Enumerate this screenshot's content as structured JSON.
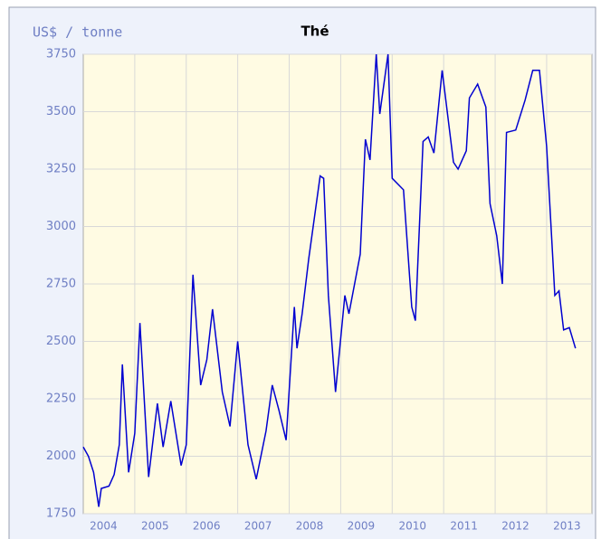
{
  "chart_data": {
    "type": "line",
    "title": "Thé",
    "y_label": "US$ / tonne",
    "color": "#0000d0",
    "x": [
      2004.0,
      2004.1,
      2004.2,
      2004.3,
      2004.35,
      2004.5,
      2004.6,
      2004.7,
      2004.76,
      2004.88,
      2005.0,
      2005.1,
      2005.27,
      2005.44,
      2005.55,
      2005.7,
      2005.9,
      2006.0,
      2006.13,
      2006.28,
      2006.4,
      2006.51,
      2006.7,
      2006.85,
      2007.0,
      2007.2,
      2007.36,
      2007.55,
      2007.67,
      2007.8,
      2007.94,
      2008.1,
      2008.15,
      2008.25,
      2008.38,
      2008.6,
      2008.67,
      2008.76,
      2008.9,
      2009.08,
      2009.16,
      2009.38,
      2009.48,
      2009.57,
      2009.69,
      2009.76,
      2009.92,
      2010.0,
      2010.22,
      2010.38,
      2010.45,
      2010.6,
      2010.7,
      2010.81,
      2010.97,
      2011.19,
      2011.28,
      2011.44,
      2011.5,
      2011.66,
      2011.82,
      2011.9,
      2012.03,
      2012.14,
      2012.22,
      2012.4,
      2012.58,
      2012.73,
      2012.86,
      2013.0,
      2013.16,
      2013.24,
      2013.33,
      2013.44,
      2013.56
    ],
    "values": [
      2040,
      2000,
      1930,
      1780,
      1860,
      1870,
      1920,
      2050,
      2400,
      1930,
      2100,
      2580,
      1910,
      2230,
      2040,
      2240,
      1960,
      2050,
      2790,
      2310,
      2420,
      2640,
      2280,
      2130,
      2500,
      2050,
      1900,
      2110,
      2310,
      2200,
      2070,
      2650,
      2470,
      2620,
      2860,
      3220,
      3210,
      2700,
      2280,
      2700,
      2620,
      2880,
      3380,
      3290,
      3750,
      3490,
      3750,
      3210,
      3160,
      2650,
      2590,
      3370,
      3390,
      3320,
      3680,
      3280,
      3250,
      3330,
      3560,
      3620,
      3520,
      3100,
      2960,
      2750,
      3410,
      3420,
      3550,
      3680,
      3680,
      3350,
      2700,
      2720,
      2550,
      2560,
      2470
    ],
    "xlim": [
      2004.0,
      2013.88
    ],
    "xticks": [
      {
        "value": 2004.5,
        "label": "2004"
      },
      {
        "value": 2005.5,
        "label": "2005"
      },
      {
        "value": 2006.5,
        "label": "2006"
      },
      {
        "value": 2007.5,
        "label": "2007"
      },
      {
        "value": 2008.5,
        "label": "2008"
      },
      {
        "value": 2009.5,
        "label": "2009"
      },
      {
        "value": 2010.5,
        "label": "2010"
      },
      {
        "value": 2011.5,
        "label": "2011"
      },
      {
        "value": 2012.5,
        "label": "2012"
      },
      {
        "value": 2013.5,
        "label": "2013"
      }
    ],
    "xgrid": [
      2005,
      2006,
      2007,
      2008,
      2009,
      2010,
      2011,
      2012,
      2013
    ],
    "ylim": [
      1750,
      3750
    ],
    "yticks": [
      1750,
      2000,
      2250,
      2500,
      2750,
      3000,
      3250,
      3500,
      3750
    ],
    "grid": true
  }
}
